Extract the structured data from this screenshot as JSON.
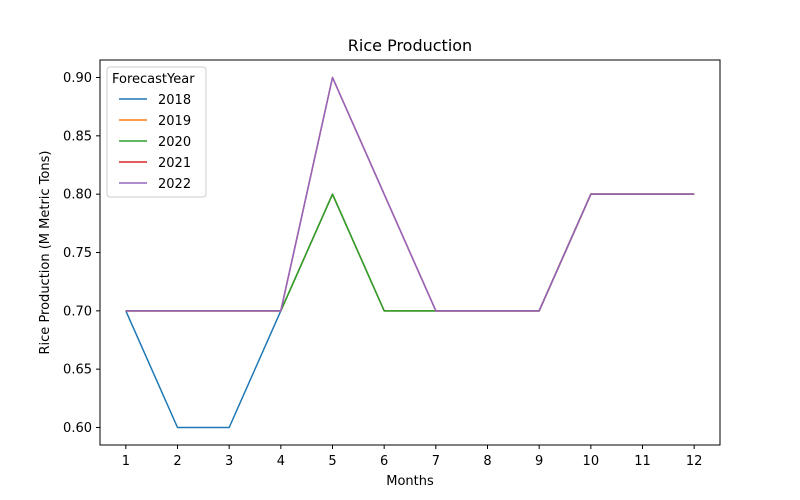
{
  "chart_data": {
    "type": "line",
    "title": "Rice Production",
    "xlabel": "Months",
    "ylabel": "Rice Production (M Metric Tons)",
    "x": [
      1,
      2,
      3,
      4,
      5,
      6,
      7,
      8,
      9,
      10,
      11,
      12
    ],
    "xticks": [
      "1",
      "2",
      "3",
      "4",
      "5",
      "6",
      "7",
      "8",
      "9",
      "10",
      "11",
      "12"
    ],
    "yticks": [
      "0.60",
      "0.65",
      "0.70",
      "0.75",
      "0.80",
      "0.85",
      "0.90"
    ],
    "xlim": [
      0.5,
      12.5
    ],
    "ylim": [
      0.585,
      0.915
    ],
    "grid": false,
    "legend": {
      "title": "ForecastYear",
      "placement": "top-left"
    },
    "series": [
      {
        "name": "2018",
        "color": "#1f77b4",
        "values": [
          0.7,
          0.6,
          0.6,
          0.7,
          0.8,
          0.7,
          0.7,
          0.7,
          0.7,
          0.8,
          0.8,
          0.8
        ]
      },
      {
        "name": "2019",
        "color": "#ff7f0e",
        "values": [
          0.7,
          0.7,
          0.7,
          0.7,
          0.8,
          0.7,
          0.7,
          0.7,
          0.7,
          0.8,
          0.8,
          0.8
        ]
      },
      {
        "name": "2020",
        "color": "#2ca02c",
        "values": [
          0.7,
          0.7,
          0.7,
          0.7,
          0.8,
          0.7,
          0.7,
          0.7,
          0.7,
          0.8,
          0.8,
          0.8
        ]
      },
      {
        "name": "2021",
        "color": "#d62728",
        "values": [
          0.7,
          0.7,
          0.7,
          0.7,
          0.9,
          0.8,
          0.7,
          0.7,
          0.7,
          0.8,
          0.8,
          0.8
        ]
      },
      {
        "name": "2022",
        "color": "#9467bd",
        "values": [
          0.7,
          0.7,
          0.7,
          0.7,
          0.9,
          0.8,
          0.7,
          0.7,
          0.7,
          0.8,
          0.8,
          0.8
        ]
      }
    ]
  }
}
